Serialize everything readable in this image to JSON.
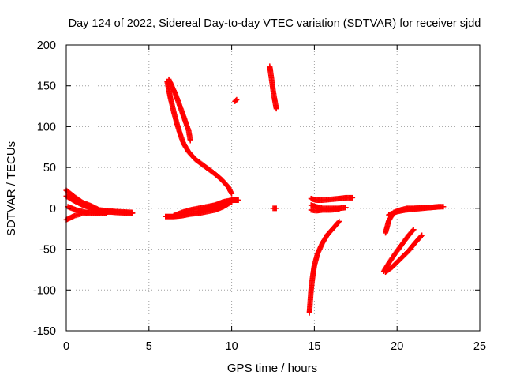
{
  "chart_data": {
    "type": "scatter",
    "title": "Day 124 of 2022, Sidereal Day-to-day VTEC variation (SDTVAR) for receiver sjdd",
    "xlabel": "GPS time / hours",
    "ylabel": "SDTVAR / TECUs",
    "xlim": [
      0,
      25
    ],
    "ylim": [
      -150,
      200
    ],
    "xticks": [
      0,
      5,
      10,
      15,
      20,
      25
    ],
    "yticks": [
      -150,
      -100,
      -50,
      0,
      50,
      100,
      150,
      200
    ],
    "grid": true,
    "marker": "plus",
    "colors": {
      "series": "#ff0000",
      "axes": "#000000",
      "grid": "#a0a0a0"
    },
    "segments": [
      {
        "x": [
          0.0,
          0.5,
          1.0,
          1.5,
          2.0,
          3.0,
          4.0
        ],
        "y": [
          22,
          14,
          7,
          3,
          -2,
          -4,
          -5
        ]
      },
      {
        "x": [
          0.0,
          0.5,
          1.0,
          1.5,
          2.0,
          3.0,
          4.0
        ],
        "y": [
          15,
          9,
          4,
          0,
          -3,
          -5,
          -6
        ]
      },
      {
        "x": [
          0.0,
          0.5,
          1.0,
          1.5,
          2.0,
          3.0
        ],
        "y": [
          -14,
          -9,
          -6,
          -5,
          -5,
          -4
        ]
      },
      {
        "x": [
          0.1,
          0.6,
          1.2,
          1.8,
          2.4
        ],
        "y": [
          2,
          -2,
          -5,
          -6,
          -6
        ]
      },
      {
        "x": [
          6.0,
          6.5,
          7.0,
          7.5,
          8.0,
          8.5,
          9.0,
          9.5,
          10.0
        ],
        "y": [
          -10,
          -10,
          -9,
          -7,
          -6,
          -4,
          -2,
          2,
          8
        ]
      },
      {
        "x": [
          6.5,
          7.0,
          7.5,
          8.0,
          8.5,
          9.0,
          9.5,
          10.0
        ],
        "y": [
          -9,
          -5,
          -2,
          0,
          2,
          4,
          6,
          8
        ]
      },
      {
        "x": [
          8.5,
          9.0,
          9.5,
          10.0,
          10.4
        ],
        "y": [
          -2,
          3,
          7,
          10,
          10
        ]
      },
      {
        "x": [
          8.0,
          8.5,
          9.0,
          9.5,
          10.0,
          10.4
        ],
        "y": [
          -4,
          0,
          4,
          8,
          10,
          10
        ]
      },
      {
        "x": [
          6.1,
          6.3,
          6.5,
          6.7,
          6.9,
          7.1,
          7.4,
          7.8,
          8.2,
          8.6,
          9.0,
          9.4,
          9.8,
          10.0
        ],
        "y": [
          155,
          135,
          118,
          103,
          90,
          79,
          69,
          60,
          54,
          48,
          42,
          35,
          26,
          18
        ]
      },
      {
        "x": [
          6.2,
          6.6,
          7.0,
          7.4,
          7.5
        ],
        "y": [
          158,
          140,
          118,
          95,
          83
        ]
      },
      {
        "x": [
          10.2,
          10.3
        ],
        "y": [
          131,
          133
        ]
      },
      {
        "x": [
          12.3,
          12.4,
          12.5,
          12.6,
          12.7
        ],
        "y": [
          174,
          160,
          145,
          133,
          122
        ]
      },
      {
        "x": [
          12.5,
          12.7
        ],
        "y": [
          0,
          0
        ]
      },
      {
        "x": [
          14.8,
          15.1,
          15.5,
          16.0,
          16.5,
          16.9,
          17.3
        ],
        "y": [
          12,
          10,
          10,
          11,
          12,
          13,
          13
        ]
      },
      {
        "x": [
          14.8,
          15.1,
          15.5,
          16.0,
          16.5,
          16.9
        ],
        "y": [
          4,
          2,
          0,
          0,
          0,
          1
        ]
      },
      {
        "x": [
          14.8,
          15.1,
          15.5,
          16.0,
          16.5
        ],
        "y": [
          -2,
          -3,
          -2,
          -2,
          -1
        ]
      },
      {
        "x": [
          14.7,
          14.8,
          14.9,
          15.0,
          15.2,
          15.5,
          15.8,
          16.2,
          16.5
        ],
        "y": [
          -128,
          -100,
          -83,
          -70,
          -55,
          -42,
          -32,
          -23,
          -16
        ]
      },
      {
        "x": [
          19.3,
          19.5,
          19.8,
          20.2,
          20.6,
          21.0,
          21.5,
          22.0,
          22.5,
          22.8
        ],
        "y": [
          -30,
          -15,
          -5,
          -2,
          0,
          0,
          1,
          1,
          2,
          2
        ]
      },
      {
        "x": [
          19.5,
          20.0,
          20.5,
          21.0,
          21.5,
          22.0,
          22.6
        ],
        "y": [
          -8,
          -4,
          -2,
          -1,
          0,
          1,
          2
        ]
      },
      {
        "x": [
          19.2,
          19.5,
          19.9,
          20.3,
          20.7,
          21.0
        ],
        "y": [
          -77,
          -67,
          -55,
          -44,
          -33,
          -26
        ]
      },
      {
        "x": [
          19.3,
          19.7,
          20.2,
          20.7,
          21.1,
          21.5
        ],
        "y": [
          -78,
          -72,
          -62,
          -52,
          -42,
          -33
        ]
      }
    ]
  }
}
